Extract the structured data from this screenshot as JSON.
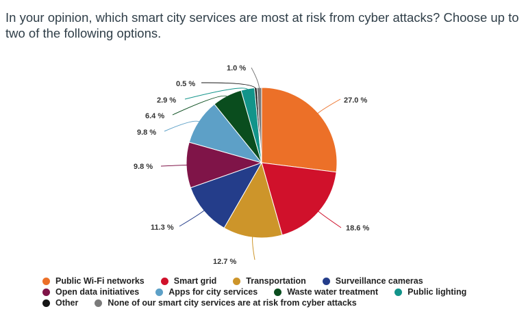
{
  "title": "In your opinion, which smart city services are most at risk from cyber attacks? Choose up to two of the following options.",
  "chart_data": {
    "type": "pie",
    "title": "In your opinion, which smart city services are most at risk from cyber attacks? Choose up to two of the following options.",
    "start_angle": "12 o'clock, clockwise",
    "slices": [
      {
        "name": "Public Wi-Fi networks",
        "value": 27.0,
        "label": "27.0 %",
        "color": "#ec7028"
      },
      {
        "name": "Smart grid",
        "value": 18.6,
        "label": "18.6 %",
        "color": "#d0112b"
      },
      {
        "name": "Transportation",
        "value": 12.7,
        "label": "12.7 %",
        "color": "#cd952a"
      },
      {
        "name": "Surveillance cameras",
        "value": 11.3,
        "label": "11.3 %",
        "color": "#243d8a"
      },
      {
        "name": "Open data initiatives",
        "value": 9.8,
        "label": "9.8 %",
        "color": "#7f1448"
      },
      {
        "name": "Apps for city services",
        "value": 9.8,
        "label": "9.8 %",
        "color": "#5da0c7"
      },
      {
        "name": "Waste water treatment",
        "value": 6.4,
        "label": "6.4 %",
        "color": "#0a4d1e"
      },
      {
        "name": "Public lighting",
        "value": 2.9,
        "label": "2.9 %",
        "color": "#12948a"
      },
      {
        "name": "Other",
        "value": 0.5,
        "label": "0.5 %",
        "color": "#151515"
      },
      {
        "name": "None of our smart city services are at risk from cyber attacks",
        "value": 1.0,
        "label": "1.0 %",
        "color": "#7a7a7a"
      }
    ],
    "legend_position": "bottom",
    "legend_rows": [
      [
        0,
        1,
        2,
        3
      ],
      [
        4,
        5,
        6,
        7
      ],
      [
        8,
        9
      ]
    ]
  }
}
